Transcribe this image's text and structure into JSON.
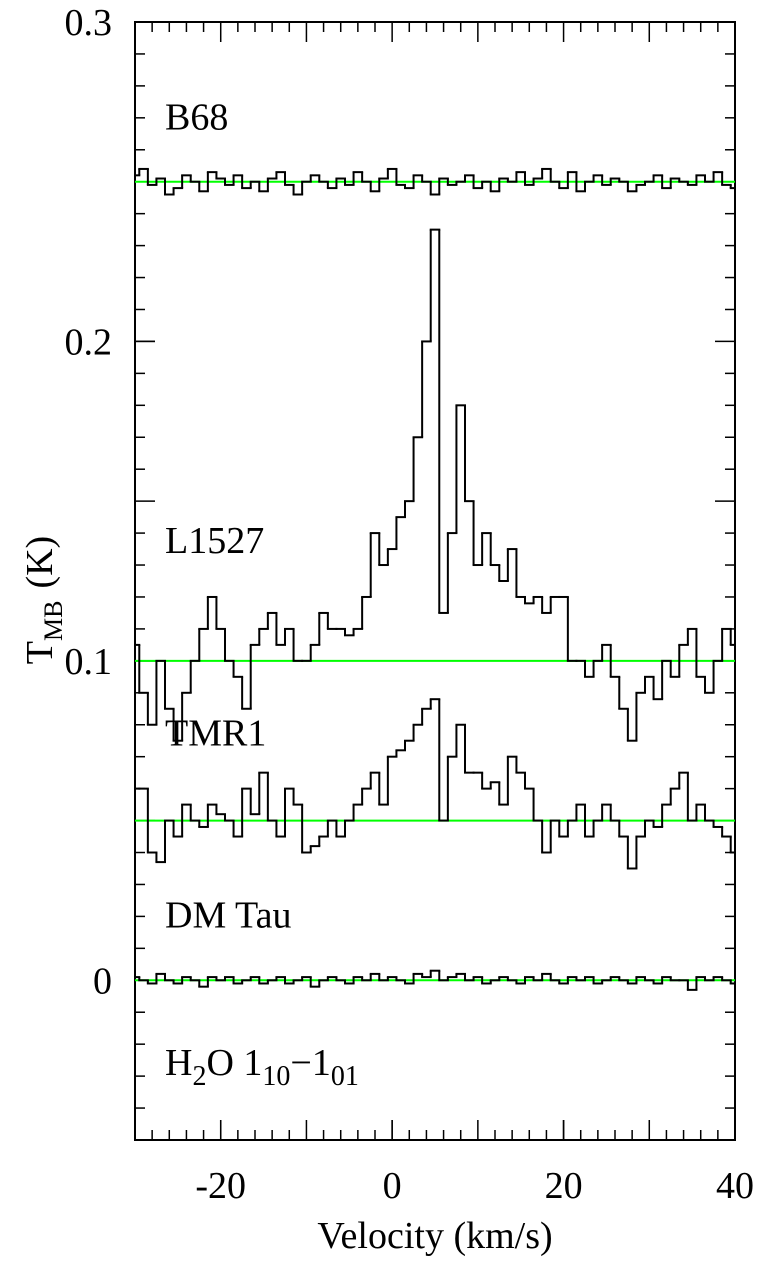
{
  "chart_data": {
    "type": "step",
    "xlabel": "Velocity (km/s)",
    "ylabel": [
      "T",
      "MB",
      "(K)"
    ],
    "annotation": [
      "H",
      "2",
      "O 1",
      "10",
      "−1",
      "01"
    ],
    "xlim": [
      -30,
      40
    ],
    "ylim": [
      -0.05,
      0.3
    ],
    "xticks": [
      -20,
      0,
      20,
      40
    ],
    "yticks": [
      0,
      0.1,
      0.2,
      0.3
    ],
    "x": [
      -30,
      -29,
      -28,
      -27,
      -26,
      -25,
      -24,
      -23,
      -22,
      -21,
      -20,
      -19,
      -18,
      -17,
      -16,
      -15,
      -14,
      -13,
      -12,
      -11,
      -10,
      -9,
      -8,
      -7,
      -6,
      -5,
      -4,
      -3,
      -2,
      -1,
      0,
      1,
      2,
      3,
      4,
      5,
      6,
      7,
      8,
      9,
      10,
      11,
      12,
      13,
      14,
      15,
      16,
      17,
      18,
      19,
      20,
      21,
      22,
      23,
      24,
      25,
      26,
      27,
      28,
      29,
      30,
      31,
      32,
      33,
      34,
      35,
      36,
      37,
      38,
      39,
      40
    ],
    "reference_lines": {
      "color": "#00ff00",
      "values": [
        0.25,
        0.1,
        0.05,
        0
      ]
    },
    "series": [
      {
        "name": "B68",
        "color": "#000000",
        "values": [
          0.252,
          0.254,
          0.249,
          0.251,
          0.246,
          0.248,
          0.252,
          0.25,
          0.247,
          0.253,
          0.251,
          0.249,
          0.252,
          0.248,
          0.25,
          0.247,
          0.251,
          0.253,
          0.249,
          0.246,
          0.25,
          0.252,
          0.25,
          0.248,
          0.251,
          0.249,
          0.253,
          0.25,
          0.247,
          0.251,
          0.254,
          0.249,
          0.248,
          0.252,
          0.25,
          0.246,
          0.251,
          0.249,
          0.25,
          0.252,
          0.248,
          0.25,
          0.247,
          0.251,
          0.25,
          0.253,
          0.249,
          0.251,
          0.254,
          0.25,
          0.248,
          0.253,
          0.247,
          0.25,
          0.252,
          0.249,
          0.251,
          0.25,
          0.247,
          0.249,
          0.25,
          0.252,
          0.248,
          0.251,
          0.25,
          0.249,
          0.252,
          0.25,
          0.253,
          0.249,
          0.248
        ]
      },
      {
        "name": "L1527",
        "color": "#000000",
        "values": [
          0.105,
          0.09,
          0.08,
          0.1,
          0.085,
          0.075,
          0.09,
          0.1,
          0.11,
          0.12,
          0.11,
          0.1,
          0.095,
          0.085,
          0.105,
          0.11,
          0.115,
          0.105,
          0.11,
          0.1,
          0.1,
          0.105,
          0.115,
          0.11,
          0.11,
          0.108,
          0.11,
          0.12,
          0.14,
          0.13,
          0.135,
          0.145,
          0.15,
          0.17,
          0.2,
          0.235,
          0.115,
          0.14,
          0.18,
          0.15,
          0.13,
          0.14,
          0.13,
          0.125,
          0.135,
          0.12,
          0.118,
          0.12,
          0.115,
          0.12,
          0.12,
          0.1,
          0.1,
          0.095,
          0.1,
          0.105,
          0.095,
          0.085,
          0.075,
          0.09,
          0.095,
          0.088,
          0.1,
          0.095,
          0.105,
          0.11,
          0.095,
          0.09,
          0.1,
          0.11,
          0.105
        ]
      },
      {
        "name": "TMR1",
        "color": "#000000",
        "values": [
          0.06,
          0.06,
          0.04,
          0.037,
          0.05,
          0.045,
          0.055,
          0.05,
          0.048,
          0.055,
          0.052,
          0.05,
          0.045,
          0.06,
          0.052,
          0.065,
          0.05,
          0.045,
          0.06,
          0.055,
          0.04,
          0.042,
          0.045,
          0.05,
          0.045,
          0.05,
          0.055,
          0.06,
          0.065,
          0.055,
          0.07,
          0.072,
          0.075,
          0.08,
          0.085,
          0.088,
          0.05,
          0.07,
          0.08,
          0.065,
          0.065,
          0.06,
          0.062,
          0.055,
          0.07,
          0.065,
          0.06,
          0.05,
          0.04,
          0.05,
          0.045,
          0.05,
          0.055,
          0.045,
          0.05,
          0.055,
          0.05,
          0.045,
          0.035,
          0.045,
          0.05,
          0.048,
          0.055,
          0.06,
          0.065,
          0.05,
          0.055,
          0.05,
          0.048,
          0.045,
          0.04
        ]
      },
      {
        "name": "DM Tau",
        "color": "#000000",
        "values": [
          0.001,
          0.0,
          -0.001,
          0.002,
          0.0,
          -0.001,
          0.001,
          0.0,
          -0.002,
          0.001,
          0.0,
          0.001,
          -0.001,
          0.0,
          0.001,
          -0.001,
          0.0,
          0.001,
          -0.001,
          0.0,
          0.001,
          -0.002,
          0.0,
          0.001,
          0.0,
          -0.001,
          0.001,
          0.0,
          0.002,
          0.0,
          0.001,
          0.0,
          -0.001,
          0.002,
          0.001,
          0.003,
          0.0,
          0.001,
          0.002,
          0.0,
          0.001,
          -0.001,
          0.0,
          0.001,
          0.0,
          -0.001,
          0.001,
          0.0,
          0.002,
          0.0,
          -0.001,
          0.001,
          0.0,
          0.001,
          -0.001,
          0.0,
          0.001,
          0.0,
          -0.001,
          0.001,
          0.0,
          -0.001,
          0.001,
          0.0,
          0.0,
          -0.003,
          0.001,
          0.0,
          0.001,
          0.0,
          -0.001
        ]
      }
    ]
  }
}
